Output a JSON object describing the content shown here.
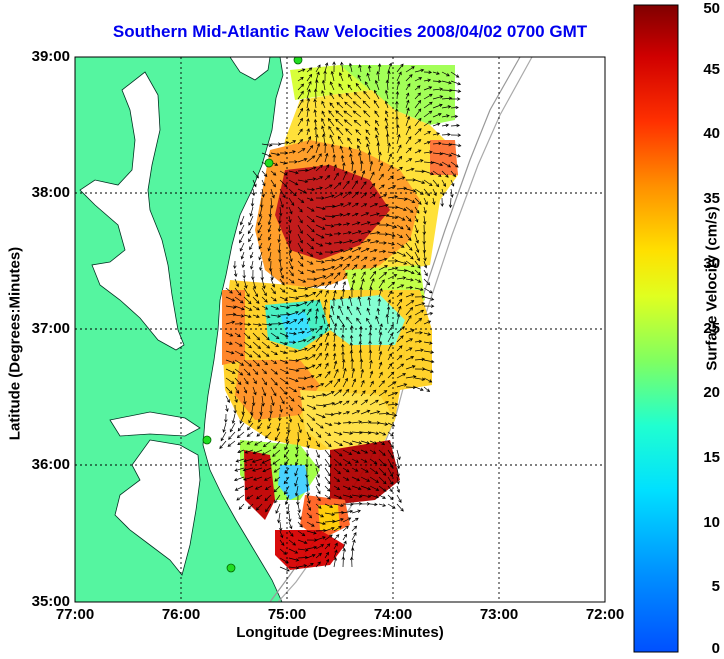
{
  "title": "Southern Mid-Atlantic Raw Velocities 2008/04/02 0700 GMT",
  "chart_data": {
    "type": "heatmap",
    "title": "Southern Mid-Atlantic Raw Velocities 2008/04/02 0700 GMT",
    "xlabel": "Longitude (Degrees:Minutes)",
    "ylabel": "Latitude (Degrees:Minutes)",
    "x_range_deg": [
      -77,
      -72
    ],
    "y_range_deg": [
      35,
      39
    ],
    "x_ticks": [
      "77:00",
      "76:00",
      "75:00",
      "74:00",
      "73:00",
      "72:00"
    ],
    "y_ticks": [
      "39:00",
      "38:00",
      "37:00",
      "36:00",
      "35:00"
    ],
    "colorbar": {
      "label": "Surface Velocity (cm/s)",
      "range": [
        0,
        50
      ],
      "ticks": [
        "50",
        "45",
        "40",
        "35",
        "30",
        "25",
        "20",
        "15",
        "10",
        "5",
        "0"
      ]
    },
    "grid": true,
    "colors": {
      "land": "#55f5a0",
      "ocean": "#ffffff",
      "title": "#0000ee",
      "stations": "#22dd22"
    }
  }
}
